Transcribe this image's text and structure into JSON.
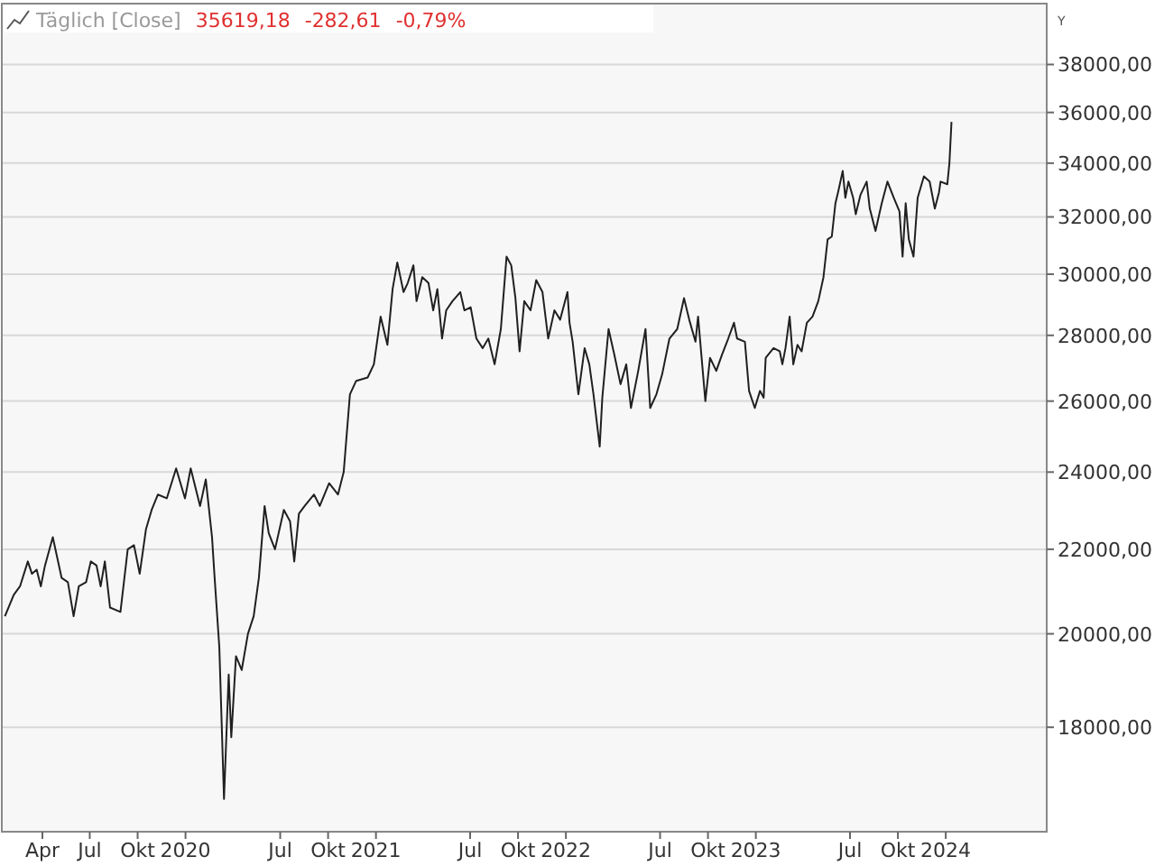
{
  "chart_data": {
    "type": "line",
    "title": "Täglich [Close]",
    "annotations": [
      "35619,18",
      "-282,61",
      "-0,79%"
    ],
    "ylabel": "Y",
    "log": "y",
    "grid": "y",
    "marker": "none",
    "line_style": "solid",
    "xlim": [
      "2019-01-13",
      "2024-07-13"
    ],
    "xticks": [
      {
        "value": "2019-04-01",
        "label": "Apr"
      },
      {
        "value": "2019-07-01",
        "label": "Jul"
      },
      {
        "value": "2019-10-01",
        "label": "Okt"
      },
      {
        "value": "2020-01-01",
        "label": "2020"
      },
      {
        "value": "2020-07-01",
        "label": "Jul"
      },
      {
        "value": "2020-10-01",
        "label": "Okt"
      },
      {
        "value": "2021-01-01",
        "label": "2021"
      },
      {
        "value": "2021-07-01",
        "label": "Jul"
      },
      {
        "value": "2021-10-01",
        "label": "Okt"
      },
      {
        "value": "2022-01-01",
        "label": "2022"
      },
      {
        "value": "2022-07-01",
        "label": "Jul"
      },
      {
        "value": "2022-10-01",
        "label": "Okt"
      },
      {
        "value": "2023-01-01",
        "label": "2023"
      },
      {
        "value": "2023-07-01",
        "label": "Jul"
      },
      {
        "value": "2023-10-01",
        "label": "Okt"
      },
      {
        "value": "2024-01-01",
        "label": "2024"
      }
    ],
    "ylim": [
      16000,
      40700
    ],
    "yticks": [
      {
        "value": 18000,
        "label": "18000,00"
      },
      {
        "value": 20000,
        "label": "20000,00"
      },
      {
        "value": 22000,
        "label": "22000,00"
      },
      {
        "value": 24000,
        "label": "24000,00"
      },
      {
        "value": 26000,
        "label": "26000,00"
      },
      {
        "value": 28000,
        "label": "28000,00"
      },
      {
        "value": 30000,
        "label": "30000,00"
      },
      {
        "value": 32000,
        "label": "32000,00"
      },
      {
        "value": 34000,
        "label": "34000,00"
      },
      {
        "value": 36000,
        "label": "36000,00"
      },
      {
        "value": 38000,
        "label": "38000,00"
      }
    ],
    "x": [
      "2019-01-19",
      "2019-02-05",
      "2019-02-17",
      "2019-03-04",
      "2019-03-12",
      "2019-03-21",
      "2019-03-29",
      "2019-04-06",
      "2019-04-21",
      "2019-05-08",
      "2019-05-20",
      "2019-05-31",
      "2019-06-10",
      "2019-06-24",
      "2019-07-03",
      "2019-07-14",
      "2019-07-22",
      "2019-07-30",
      "2019-08-09",
      "2019-08-29",
      "2019-09-12",
      "2019-09-24",
      "2019-10-05",
      "2019-10-17",
      "2019-10-28",
      "2019-11-09",
      "2019-11-26",
      "2019-12-14",
      "2019-12-31",
      "2020-01-11",
      "2020-01-29",
      "2020-02-09",
      "2020-02-21",
      "2020-02-26",
      "2020-03-06",
      "2020-03-15",
      "2020-03-24",
      "2020-03-29",
      "2020-04-07",
      "2020-04-18",
      "2020-04-30",
      "2020-05-11",
      "2020-05-21",
      "2020-06-01",
      "2020-06-09",
      "2020-06-21",
      "2020-07-08",
      "2020-07-20",
      "2020-07-28",
      "2020-08-06",
      "2020-08-17",
      "2020-09-04",
      "2020-09-15",
      "2020-10-03",
      "2020-10-20",
      "2020-10-31",
      "2020-11-12",
      "2020-11-24",
      "2020-12-16",
      "2020-12-28",
      "2021-01-10",
      "2021-01-23",
      "2021-02-02",
      "2021-02-11",
      "2021-02-23",
      "2021-03-03",
      "2021-03-14",
      "2021-03-20",
      "2021-03-31",
      "2021-04-12",
      "2021-04-21",
      "2021-04-29",
      "2021-05-08",
      "2021-05-16",
      "2021-05-28",
      "2021-06-12",
      "2021-06-20",
      "2021-07-02",
      "2021-07-13",
      "2021-07-25",
      "2021-08-05",
      "2021-08-17",
      "2021-08-29",
      "2021-09-09",
      "2021-09-18",
      "2021-09-26",
      "2021-10-04",
      "2021-10-13",
      "2021-10-25",
      "2021-11-05",
      "2021-11-17",
      "2021-11-28",
      "2021-12-10",
      "2021-12-21",
      "2022-01-04",
      "2022-01-08",
      "2022-01-14",
      "2022-01-25",
      "2022-02-06",
      "2022-02-15",
      "2022-02-23",
      "2022-03-07",
      "2022-03-12",
      "2022-03-24",
      "2022-04-04",
      "2022-04-16",
      "2022-04-27",
      "2022-05-06",
      "2022-05-20",
      "2022-06-03",
      "2022-06-12",
      "2022-06-24",
      "2022-07-05",
      "2022-07-19",
      "2022-08-03",
      "2022-08-16",
      "2022-08-26",
      "2022-09-07",
      "2022-09-12",
      "2022-09-26",
      "2022-10-05",
      "2022-10-17",
      "2022-10-28",
      "2022-11-09",
      "2022-11-20",
      "2022-11-26",
      "2022-12-11",
      "2022-12-19",
      "2022-12-30",
      "2023-01-09",
      "2023-01-16",
      "2023-01-20",
      "2023-02-04",
      "2023-02-16",
      "2023-02-21",
      "2023-02-27",
      "2023-03-07",
      "2023-03-14",
      "2023-03-22",
      "2023-03-30",
      "2023-04-09",
      "2023-04-20",
      "2023-05-01",
      "2023-05-11",
      "2023-05-19",
      "2023-05-27",
      "2023-06-03",
      "2023-06-08",
      "2023-06-17",
      "2023-06-22",
      "2023-06-28",
      "2023-07-07",
      "2023-07-12",
      "2023-07-21",
      "2023-08-02",
      "2023-08-08",
      "2023-08-19",
      "2023-08-31",
      "2023-09-11",
      "2023-09-23",
      "2023-10-04",
      "2023-10-10",
      "2023-10-16",
      "2023-10-22",
      "2023-10-31",
      "2023-11-08",
      "2023-11-20",
      "2023-12-01",
      "2023-12-11",
      "2023-12-19",
      "2023-12-22",
      "2024-01-04",
      "2024-01-08",
      "2024-01-12"
    ],
    "series": [
      {
        "color": "#202020",
        "values": [
          20400,
          20900,
          21100,
          21700,
          21400,
          21500,
          21100,
          21600,
          22300,
          21300,
          21200,
          20400,
          21100,
          21200,
          21700,
          21600,
          21100,
          21700,
          20600,
          20500,
          22000,
          22100,
          21400,
          22500,
          23000,
          23400,
          23300,
          24100,
          23300,
          24100,
          23100,
          23800,
          22300,
          21300,
          19700,
          16600,
          19100,
          17800,
          19500,
          19200,
          20000,
          20400,
          21300,
          23100,
          22400,
          22000,
          23000,
          22700,
          21700,
          22900,
          23100,
          23400,
          23100,
          23700,
          23400,
          24000,
          26200,
          26600,
          26700,
          27100,
          28600,
          27700,
          29500,
          30400,
          29400,
          29700,
          30300,
          29100,
          29900,
          29700,
          28800,
          29500,
          27900,
          28800,
          29100,
          29400,
          28800,
          28900,
          27900,
          27600,
          27900,
          27100,
          28200,
          30600,
          30300,
          29200,
          27500,
          29100,
          28800,
          29800,
          29400,
          27900,
          28800,
          28500,
          29400,
          28400,
          27800,
          26200,
          27600,
          27100,
          26200,
          24700,
          26100,
          28200,
          27400,
          26500,
          27100,
          25800,
          26900,
          28200,
          25800,
          26200,
          26800,
          27900,
          28200,
          29200,
          28500,
          27800,
          28600,
          26000,
          27300,
          26900,
          27400,
          27900,
          28400,
          27900,
          27800,
          26300,
          25800,
          26300,
          26100,
          27300,
          27600,
          27500,
          27100,
          27600,
          28600,
          27100,
          27700,
          27500,
          28400,
          28600,
          29100,
          29900,
          31200,
          31300,
          32500,
          32900,
          33700,
          32700,
          33300,
          32700,
          32100,
          32800,
          33300,
          32300,
          31500,
          32500,
          33300,
          32700,
          32200,
          30600,
          32500,
          31200,
          30600,
          32700,
          33500,
          33300,
          32300,
          32900,
          33300,
          33200,
          34000,
          35619.18
        ]
      }
    ]
  }
}
